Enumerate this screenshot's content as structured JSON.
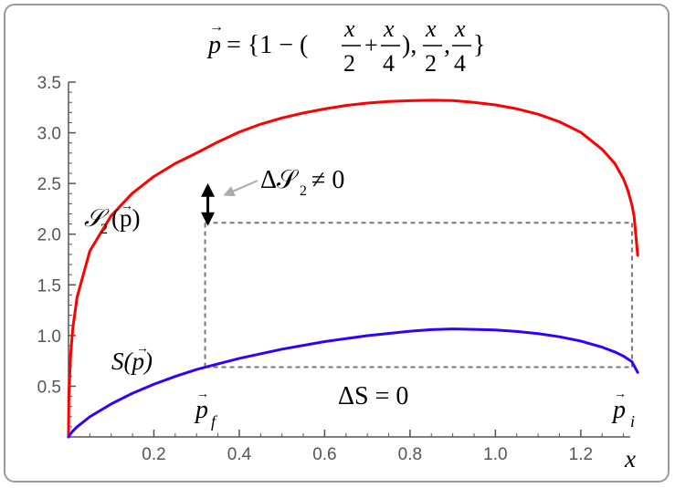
{
  "chart_data": {
    "type": "line",
    "title_parts": {
      "lhs": "p",
      "eq": "= {1 − (",
      "x": "x",
      "two": "2",
      "plus": "+",
      "four": "4",
      "close": "),",
      "comma": ",",
      "end": "}"
    },
    "xlabel": "x",
    "ylabel": "",
    "xlim": [
      0,
      1.333
    ],
    "ylim": [
      0,
      3.5
    ],
    "x_ticks": [
      0.2,
      0.4,
      0.6,
      0.8,
      1.0,
      1.2
    ],
    "x_tick_labels": [
      "0.2",
      "0.4",
      "0.6",
      "0.8",
      "1.0",
      "1.2"
    ],
    "y_ticks": [
      0.5,
      1.0,
      1.5,
      2.0,
      2.5,
      3.0,
      3.5
    ],
    "y_tick_labels": [
      "0.5",
      "1.0",
      "1.5",
      "2.0",
      "2.5",
      "3.0",
      "3.5"
    ],
    "series": [
      {
        "name": "S₂(p)",
        "color": "#ff0000",
        "x": [
          0.0,
          0.0005,
          0.001,
          0.005,
          0.01,
          0.02,
          0.05,
          0.1,
          0.15,
          0.2,
          0.25,
          0.3,
          0.35,
          0.4,
          0.45,
          0.5,
          0.55,
          0.6,
          0.65,
          0.7,
          0.75,
          0.8,
          0.85,
          0.9,
          0.95,
          1.0,
          1.05,
          1.1,
          1.15,
          1.2,
          1.25,
          1.28,
          1.3,
          1.31,
          1.32,
          1.325,
          1.3333
        ],
        "y": [
          0.0,
          0.3039,
          0.4296,
          0.8135,
          1.0697,
          1.3765,
          1.8341,
          2.1825,
          2.4052,
          2.5689,
          2.6967,
          2.8006,
          2.9098,
          3.0071,
          3.0848,
          3.1466,
          3.1951,
          3.2357,
          3.2698,
          3.2929,
          3.3091,
          3.3163,
          3.3217,
          3.3177,
          3.2998,
          3.2749,
          3.2366,
          3.1832,
          3.1088,
          3.0043,
          2.8373,
          2.6955,
          2.545,
          2.4363,
          2.2856,
          2.1732,
          1.7918
        ]
      },
      {
        "name": "S(p)",
        "color": "#3300ff",
        "x": [
          0.0,
          0.005,
          0.01,
          0.02,
          0.05,
          0.1,
          0.15,
          0.2,
          0.25,
          0.3,
          0.35,
          0.4,
          0.5,
          0.6,
          0.7,
          0.8,
          0.85,
          0.9,
          0.95,
          1.0,
          1.05,
          1.1,
          1.15,
          1.2,
          1.25,
          1.28,
          1.3,
          1.32,
          1.3333
        ],
        "y": [
          0.0,
          0.0318,
          0.0567,
          0.0993,
          0.199,
          0.325,
          0.4309,
          0.5195,
          0.5965,
          0.6653,
          0.7203,
          0.7741,
          0.8656,
          0.9401,
          0.9991,
          1.0428,
          1.0581,
          1.0646,
          1.0611,
          1.0548,
          1.0407,
          1.0188,
          0.9879,
          0.9455,
          0.8853,
          0.8376,
          0.7969,
          0.7407,
          0.6365
        ]
      }
    ],
    "reference_lines": {
      "x_f": 0.32,
      "x_i": 1.32,
      "y_S": 0.6886,
      "y_S2_level": 2.1123,
      "y_S2_at_xf": 2.4808
    },
    "annotations": {
      "s2_label": "𝒮",
      "s2_sub": "2",
      "s2_arg": "(p)",
      "s_label": "S(p)",
      "delta_s2_text": "Δ𝒮",
      "delta_s2_sub": "2",
      "delta_s2_rel": "≠ 0",
      "delta_s_text": "ΔS = 0",
      "pf_base": "p",
      "pf_sub": "f",
      "pi_base": "p",
      "pi_sub": "i"
    },
    "colors": {
      "axis": "#555555",
      "reference": "#777777",
      "arrow_annotation": "#aaaaaa",
      "frame": "#9a9a9a"
    },
    "grid": false
  }
}
